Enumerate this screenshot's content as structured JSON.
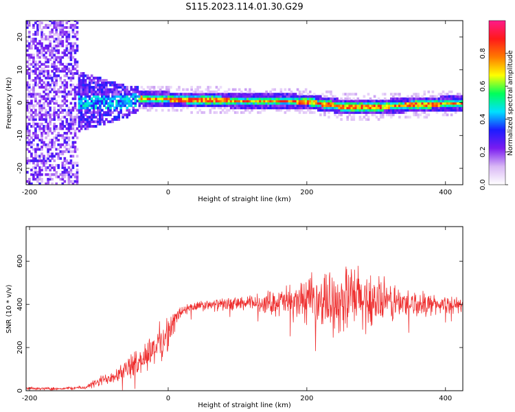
{
  "title": "S115.2023.114.01.30.G29",
  "chart_data": [
    {
      "type": "heatmap",
      "xlabel": "Height of straight line (km)",
      "ylabel": "Frequency (Hz)",
      "xlim": [
        -205,
        425
      ],
      "ylim": [
        -25,
        25
      ],
      "xticks": [
        -200,
        0,
        200,
        400
      ],
      "yticks": [
        -20,
        -10,
        0,
        10,
        20
      ],
      "colorbar": {
        "label": "Normalized spectral amplitude",
        "range": [
          0,
          1
        ],
        "ticks": [
          0.0,
          0.2,
          0.4,
          0.6,
          0.8
        ],
        "colors": [
          "#ffffff",
          "#d9b8f5",
          "#7a1cf0",
          "#1c1cff",
          "#00e0ff",
          "#00ff5a",
          "#ffff00",
          "#ff7a00",
          "#ff1a1a",
          "#ff1a8a"
        ]
      },
      "ridge": {
        "x": [
          -60,
          -40,
          -20,
          0,
          50,
          100,
          150,
          200,
          250,
          300,
          350,
          400,
          425
        ],
        "y": [
          0,
          1,
          0.8,
          0.8,
          0.6,
          0.2,
          0.3,
          0,
          -1.5,
          -1.5,
          -1,
          -0.5,
          -0.5
        ]
      },
      "noise_region": {
        "x": [
          -205,
          -130
        ],
        "y": [
          -25,
          25
        ]
      },
      "grid": false
    },
    {
      "type": "line",
      "xlabel": "Height of straight line (km)",
      "ylabel": "SNR (10 * v/v)",
      "xlim": [
        -205,
        425
      ],
      "ylim": [
        0,
        760
      ],
      "xticks": [
        -200,
        0,
        200,
        400
      ],
      "yticks": [
        0,
        200,
        400,
        600
      ],
      "color": "#ee2e2e",
      "envelope": {
        "x": [
          -205,
          -150,
          -120,
          -100,
          -80,
          -60,
          -40,
          -20,
          0,
          10,
          20,
          40,
          80,
          120,
          160,
          200,
          240,
          260,
          280,
          300,
          340,
          380,
          425
        ],
        "mean": [
          10,
          10,
          15,
          40,
          70,
          100,
          140,
          200,
          260,
          330,
          370,
          390,
          400,
          405,
          410,
          415,
          420,
          425,
          420,
          415,
          405,
          400,
          395
        ],
        "spread": [
          8,
          8,
          12,
          30,
          45,
          60,
          80,
          110,
          100,
          60,
          40,
          30,
          35,
          45,
          80,
          130,
          180,
          200,
          190,
          150,
          90,
          60,
          40
        ]
      },
      "grid": false
    }
  ]
}
